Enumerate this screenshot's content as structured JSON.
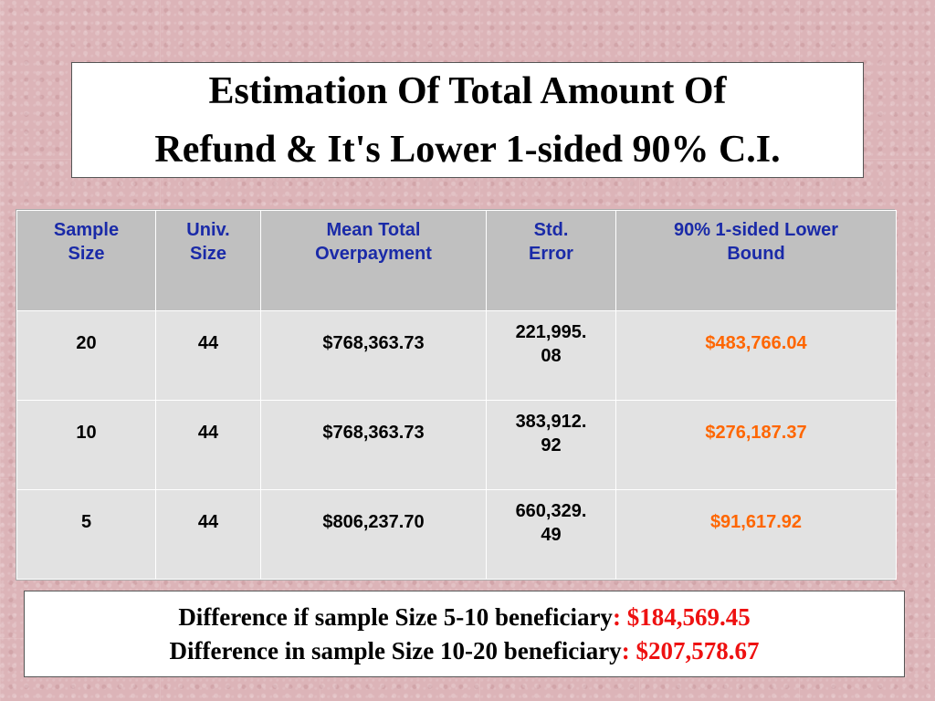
{
  "title": {
    "line1": "Estimation Of Total Amount Of",
    "line2": "Refund & It's Lower 1-sided 90% C.I."
  },
  "table": {
    "headers": [
      {
        "line1": "Sample",
        "line2": "Size"
      },
      {
        "line1": "Univ.",
        "line2": "Size"
      },
      {
        "line1": "Mean Total",
        "line2": "Overpayment"
      },
      {
        "line1": "Std.",
        "line2": "Error"
      },
      {
        "line1": "90% 1-sided Lower",
        "line2": "Bound"
      }
    ],
    "rows": [
      {
        "sample_size": "20",
        "univ_size": "44",
        "mean_total": "$768,363.73",
        "std_error_a": "221,995.",
        "std_error_b": "08",
        "lower_bound": "$483,766.04"
      },
      {
        "sample_size": "10",
        "univ_size": "44",
        "mean_total": "$768,363.73",
        "std_error_a": "383,912.",
        "std_error_b": "92",
        "lower_bound": "$276,187.37"
      },
      {
        "sample_size": "5",
        "univ_size": "44",
        "mean_total": "$806,237.70",
        "std_error_a": "660,329.",
        "std_error_b": "49",
        "lower_bound": "$91,617.92"
      }
    ]
  },
  "footer": {
    "line1_text": "Difference if sample Size 5-10 beneficiary",
    "line1_sep": ": ",
    "line1_amount": "$184,569.45",
    "line2_text": "Difference in sample Size 10-20 beneficiary",
    "line2_sep": ": ",
    "line2_amount": "$207,578.67"
  },
  "colors": {
    "header_text": "#1a2aa8",
    "lower_bound_text": "#ff6600",
    "difference_amount": "#ee1111",
    "background": "#dcb4b8"
  }
}
